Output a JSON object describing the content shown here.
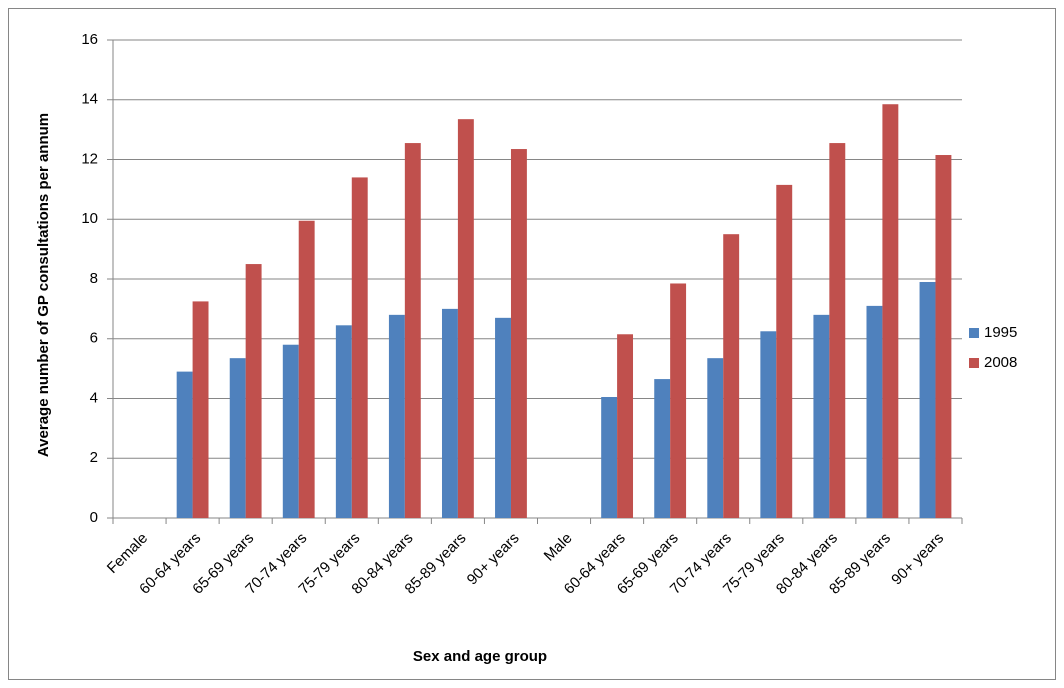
{
  "chart_data": {
    "type": "bar",
    "x_label": "Sex and age group",
    "y_label": "Average number of GP consultations per annum",
    "categories": [
      "Female",
      "60-64 years",
      "65-69 years",
      "70-74 years",
      "75-79 years",
      "80-84 years",
      "85-89 years",
      "90+ years",
      "Male",
      "60-64 years",
      "65-69 years",
      "70-74 years",
      "75-79 years",
      "80-84 years",
      "85-89 years",
      "90+ years"
    ],
    "series": [
      {
        "name": "1995",
        "color": "#4f81bd",
        "values": [
          null,
          4.9,
          5.35,
          5.8,
          6.45,
          6.8,
          7.0,
          6.7,
          null,
          4.05,
          4.65,
          5.35,
          6.25,
          6.8,
          7.1,
          7.9
        ]
      },
      {
        "name": "2008",
        "color": "#c0504d",
        "values": [
          null,
          7.25,
          8.5,
          9.95,
          11.4,
          12.55,
          13.35,
          12.35,
          null,
          6.15,
          7.85,
          9.5,
          11.15,
          12.55,
          13.85,
          12.15
        ]
      }
    ],
    "ylim": [
      0,
      16
    ],
    "yticks": [
      0,
      2,
      4,
      6,
      8,
      10,
      12,
      14,
      16
    ],
    "grid": true,
    "legend": "right"
  }
}
